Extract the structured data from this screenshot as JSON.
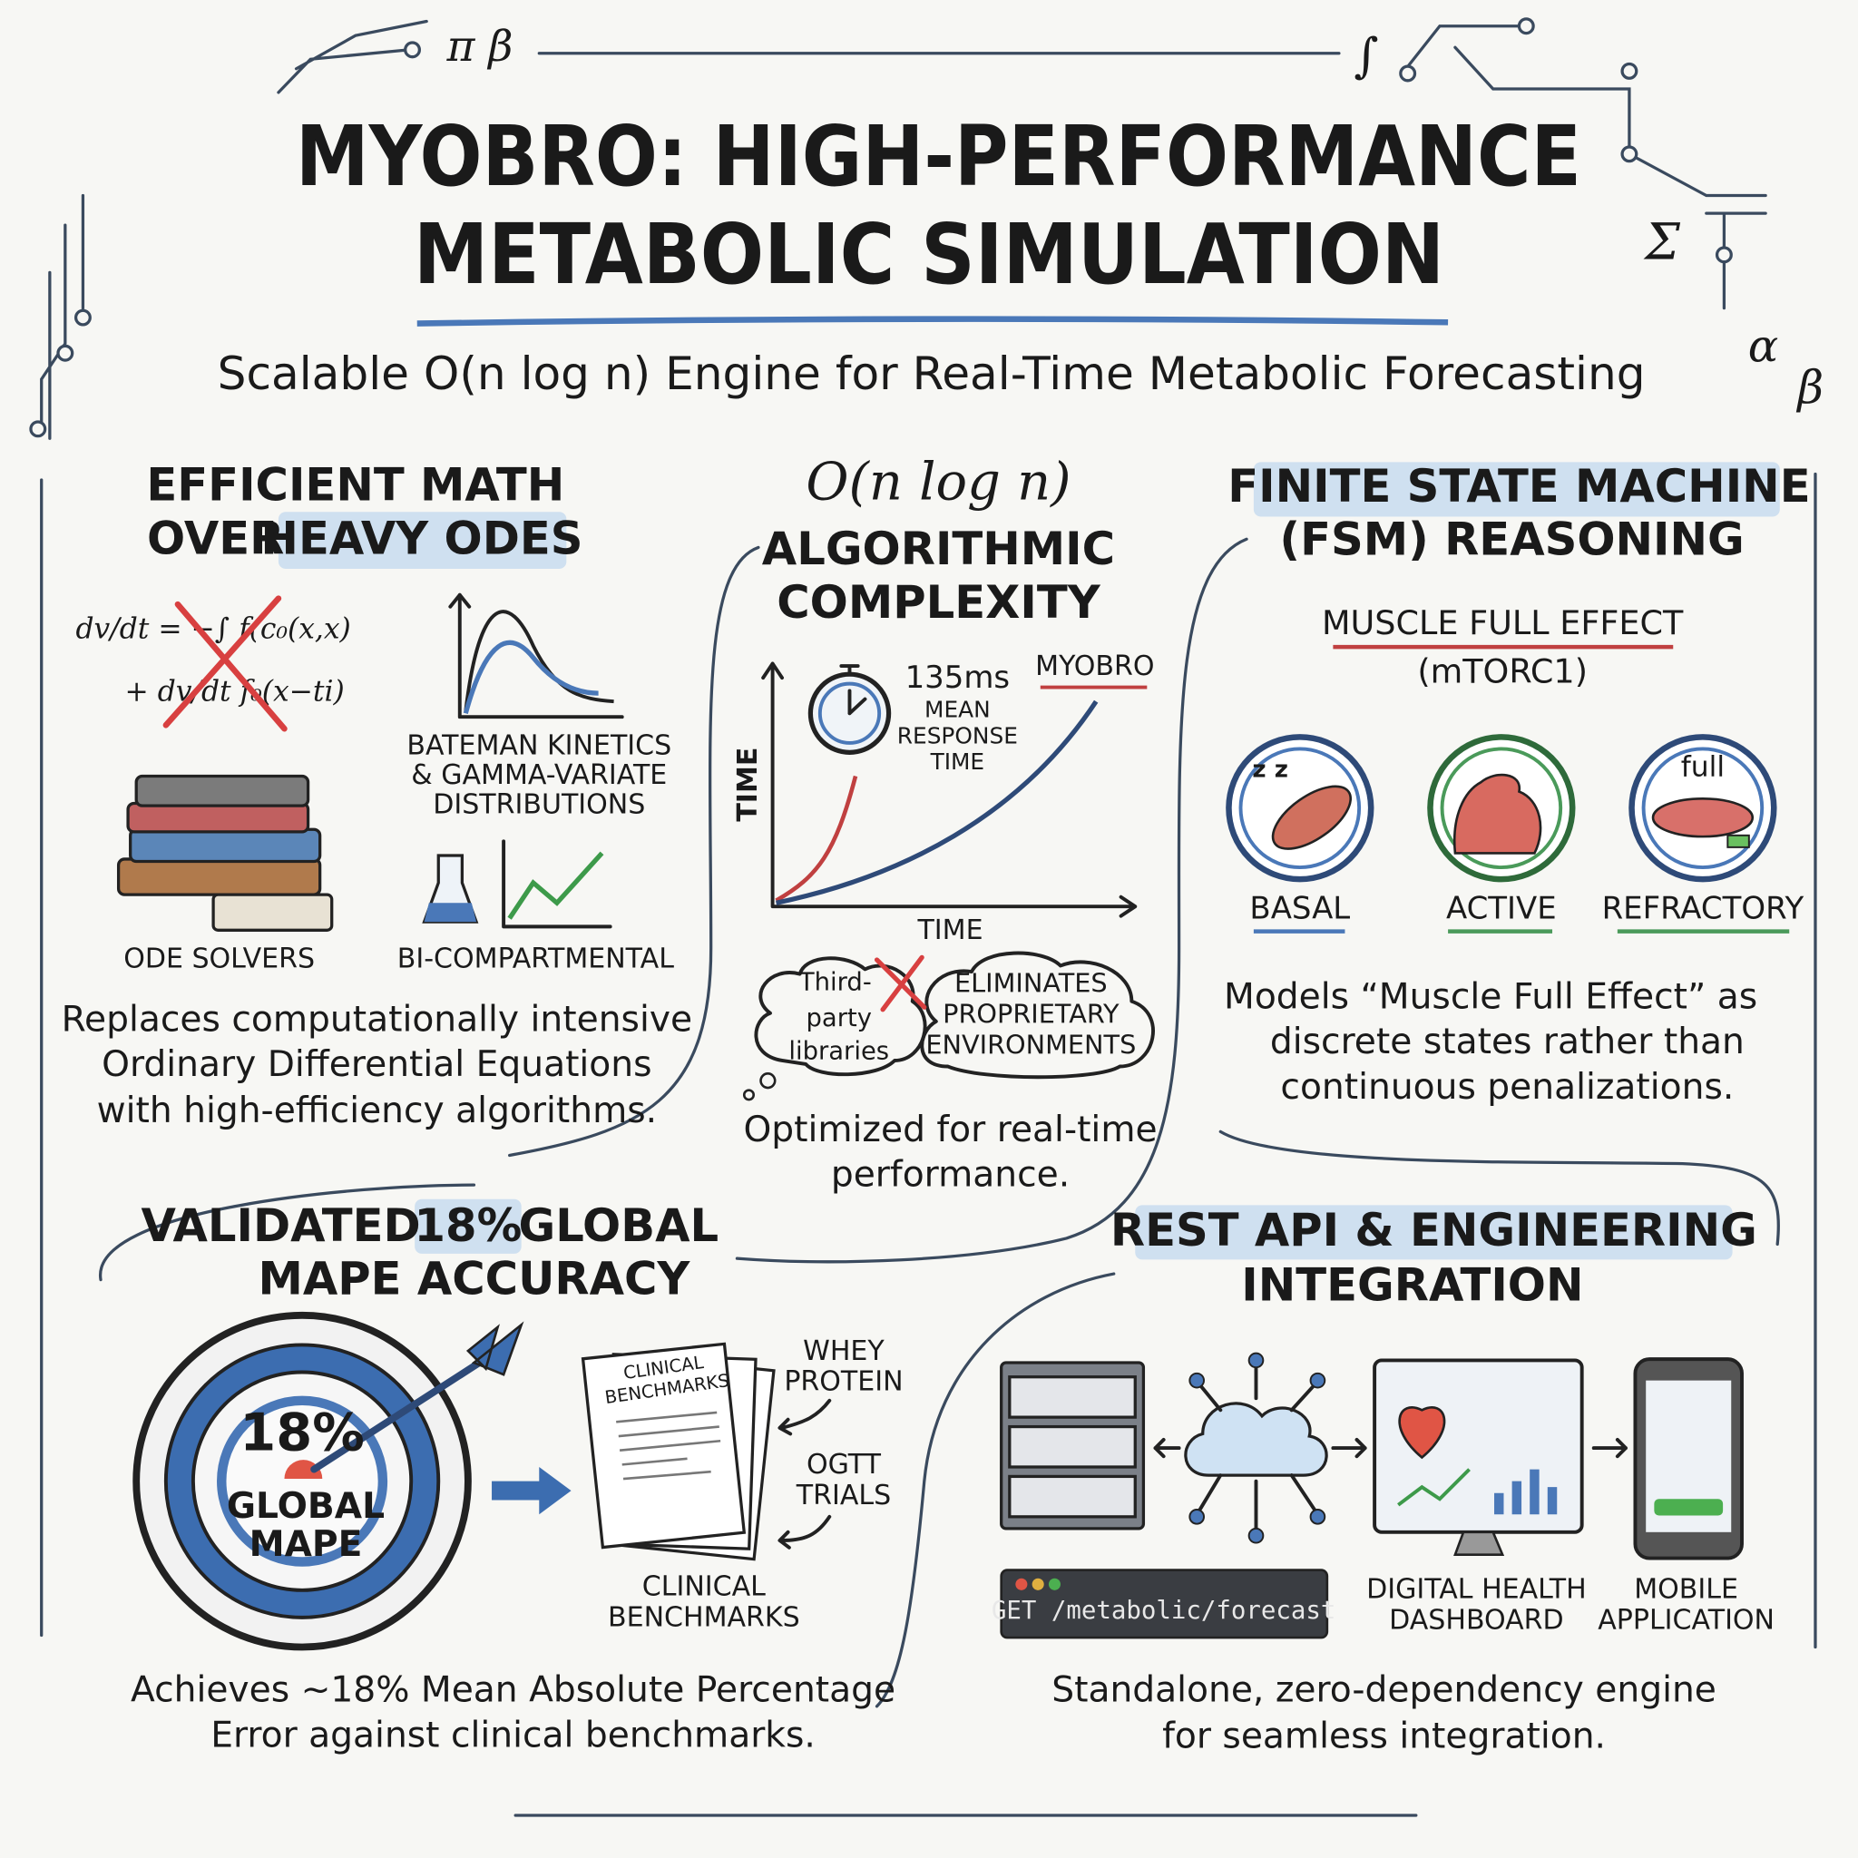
{
  "decor": {
    "symbols": [
      "π β",
      "∫",
      "Σ",
      "α",
      "β"
    ]
  },
  "header": {
    "title": [
      "MYOBRO: HIGH-PERFORMANCE",
      "METABOLIC SIMULATION"
    ],
    "subtitle": "Scalable O(n log n) Engine for Real-Time Metabolic Forecasting"
  },
  "math": {
    "heading": [
      "EFFICIENT MATH",
      "OVER",
      "HEAVY ODES"
    ],
    "formula": [
      "dv/dt = −∫ f(c₀(x,x)",
      "+ dv/dt f₀(x−ti)"
    ],
    "solvers": "ODE SOLVERS",
    "kinetics": [
      "BATEMAN KINETICS",
      "& GAMMA-VARIATE",
      "DISTRIBUTIONS"
    ],
    "compartment": "BI-COMPARTMENTAL",
    "description": [
      "Replaces computationally intensive",
      "Ordinary Differential Equations",
      "with high-efficiency algorithms."
    ]
  },
  "complexity": {
    "notation": "O(n log n)",
    "heading": [
      "ALGORITHMIC",
      "COMPLEXITY"
    ],
    "response_time": "135ms",
    "response_label": [
      "MEAN",
      "RESPONSE",
      "TIME"
    ],
    "series_label": "MYOBRO",
    "y_axis": "TIME",
    "x_axis": "TIME",
    "cloud_left": [
      "Third-",
      "party",
      "libraries"
    ],
    "cloud_right": [
      "ELIMINATES",
      "PROPRIETARY",
      "ENVIRONMENTS"
    ],
    "description": [
      "Optimized for real-time",
      "performance."
    ]
  },
  "fsm": {
    "heading": [
      "FINITE STATE MACHINE",
      "(FSM) REASONING"
    ],
    "effect": "MUSCLE FULL EFFECT",
    "pathway": "(mTORC1)",
    "sleep_icon": "z z",
    "full_icon": "full",
    "states": [
      "BASAL",
      "ACTIVE",
      "REFRACTORY"
    ],
    "description": [
      "Models “Muscle Full Effect” as",
      "discrete states rather than",
      "continuous penalizations."
    ]
  },
  "accuracy": {
    "heading": [
      "VALIDATED",
      "18%",
      "GLOBAL",
      "MAPE ACCURACY"
    ],
    "target": [
      "18%",
      "GLOBAL",
      "MAPE"
    ],
    "document": [
      "CLINICAL",
      "BENCHMARKS"
    ],
    "sources": [
      [
        "WHEY",
        "PROTEIN"
      ],
      [
        "OGTT",
        "TRIALS"
      ]
    ],
    "caption": [
      "CLINICAL",
      "BENCHMARKS"
    ],
    "description": [
      "Achieves ~18% Mean Absolute Percentage",
      "Error against clinical benchmarks."
    ]
  },
  "api": {
    "heading": [
      "REST API & ENGINEERING",
      "INTEGRATION"
    ],
    "endpoint": "GET /metabolic/forecast",
    "dashboard": [
      "DIGITAL HEALTH",
      "DASHBOARD"
    ],
    "mobile": [
      "MOBILE",
      "APPLICATION"
    ],
    "description": [
      "Standalone, zero-dependency engine",
      "for seamless integration."
    ]
  }
}
